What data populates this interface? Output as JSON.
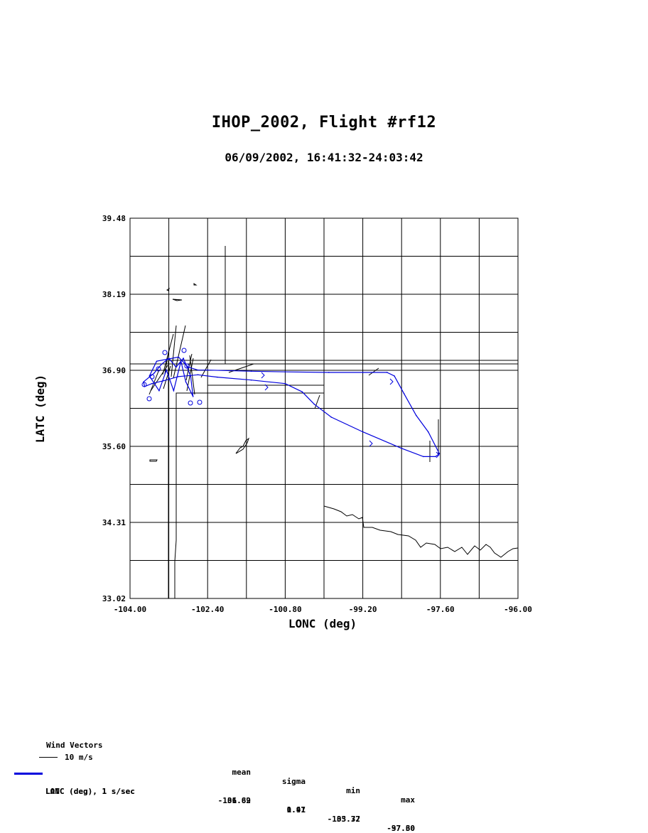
{
  "title": "IHOP_2002, Flight #rf12",
  "subtitle": "06/09/2002, 16:41:32-24:03:42",
  "legend": {
    "wind_heading": "Wind Vectors",
    "wind_key": "10 m/s",
    "columns": [
      "mean",
      "sigma",
      "min",
      "max"
    ],
    "rows": [
      {
        "label": "LATC (deg), 1 s/sec",
        "mean": "36.62",
        "sigma": "0.47",
        "min": "35.32",
        "max": "37.30"
      },
      {
        "label": "LONC (deg), 1 s/sec",
        "mean": "-101.89",
        "sigma": "1.91",
        "min": "-103.77",
        "max": "-97.60"
      }
    ]
  },
  "colors": {
    "track": "#0000dd",
    "wind": "#000000",
    "grid": "#000000"
  },
  "chart_data": {
    "type": "line",
    "xlabel": "LONC (deg)",
    "ylabel": "LATC (deg)",
    "xlim": [
      -104.0,
      -96.0
    ],
    "ylim": [
      33.02,
      39.48
    ],
    "xticks": [
      "-104.00",
      "-102.40",
      "-100.80",
      "-99.20",
      "-97.60",
      "-96.00"
    ],
    "yticks": [
      "33.02",
      "34.31",
      "35.60",
      "36.90",
      "38.19",
      "39.48"
    ],
    "grid": true,
    "series": [
      {
        "name": "LATC (deg), 1 s/sec",
        "points": [
          [
            -102.4,
            36.9
          ],
          [
            -101.5,
            36.88
          ],
          [
            -100.8,
            36.87
          ],
          [
            -99.9,
            36.86
          ],
          [
            -99.2,
            36.86
          ],
          [
            -98.7,
            36.86
          ],
          [
            -98.55,
            36.8
          ],
          [
            -98.35,
            36.5
          ],
          [
            -98.1,
            36.13
          ],
          [
            -97.85,
            35.85
          ],
          [
            -97.62,
            35.48
          ],
          [
            -97.7,
            35.43
          ],
          [
            -97.95,
            35.43
          ],
          [
            -98.4,
            35.57
          ],
          [
            -99.2,
            35.85
          ],
          [
            -99.85,
            36.1
          ],
          [
            -100.2,
            36.32
          ],
          [
            -100.45,
            36.53
          ],
          [
            -100.8,
            36.67
          ],
          [
            -101.5,
            36.73
          ],
          [
            -102.2,
            36.78
          ],
          [
            -102.6,
            36.82
          ],
          [
            -103.0,
            36.79
          ],
          [
            -103.3,
            36.72
          ],
          [
            -103.55,
            36.67
          ],
          [
            -103.7,
            36.62
          ],
          [
            -103.72,
            36.7
          ],
          [
            -103.5,
            36.85
          ],
          [
            -103.35,
            37.0
          ],
          [
            -103.2,
            37.1
          ],
          [
            -103.05,
            36.95
          ],
          [
            -102.9,
            37.1
          ],
          [
            -102.75,
            36.8
          ],
          [
            -102.7,
            36.45
          ],
          [
            -102.85,
            36.7
          ],
          [
            -102.95,
            37.05
          ],
          [
            -103.1,
            36.55
          ],
          [
            -103.25,
            36.9
          ],
          [
            -103.4,
            36.55
          ],
          [
            -103.6,
            36.8
          ],
          [
            -103.45,
            37.05
          ],
          [
            -103.0,
            37.12
          ],
          [
            -102.8,
            36.95
          ],
          [
            -102.6,
            36.9
          ],
          [
            -102.4,
            36.9
          ]
        ]
      }
    ]
  }
}
